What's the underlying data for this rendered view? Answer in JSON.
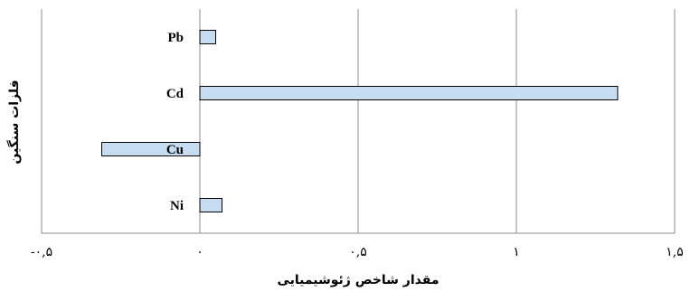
{
  "chart_data": {
    "type": "bar",
    "orientation": "horizontal",
    "categories": [
      "Pb",
      "Cd",
      "Cu",
      "Ni"
    ],
    "values": [
      0.05,
      1.32,
      -0.31,
      0.07
    ],
    "xlabel": "مقدار شاخص ژئوشیمیایی",
    "ylabel": "فلزات سنگین",
    "xlim": [
      -0.5,
      1.5
    ],
    "xticks": [
      -0.5,
      0,
      0.5,
      1,
      1.5
    ],
    "xtick_labels": [
      "-۰,۵",
      "۰",
      "۰,۵",
      "۱",
      "۱,۵"
    ],
    "grid": "vertical",
    "legend": "none",
    "colors": {
      "bar_fill": "#c6dcf1",
      "bar_stroke": "#000000",
      "grid": "#8c8c8c"
    }
  }
}
